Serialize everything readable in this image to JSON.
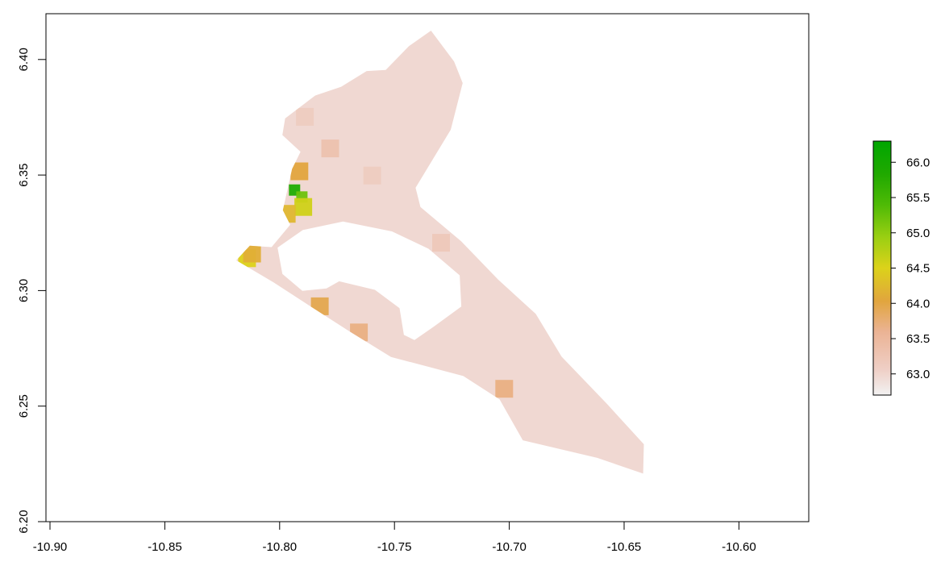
{
  "chart_data": {
    "type": "heatmap",
    "title": "",
    "xlabel": "",
    "ylabel": "",
    "xlim": [
      -10.9,
      -10.567
    ],
    "ylim": [
      6.2,
      6.42
    ],
    "x_ticks": [
      "-10.90",
      "-10.85",
      "-10.80",
      "-10.75",
      "-10.70",
      "-10.65",
      "-10.60"
    ],
    "y_ticks": [
      "6.20",
      "6.25",
      "6.30",
      "6.35",
      "6.40"
    ],
    "legend": {
      "placement": "right",
      "min": 62.7,
      "max": 66.3,
      "ticks": [
        "63.0",
        "63.5",
        "64.0",
        "64.5",
        "65.0",
        "65.5",
        "66.0"
      ],
      "colors": [
        "#f2f2f2",
        "#ecb49c",
        "#e0a040",
        "#d9d91a",
        "#8fcc10",
        "#13a800",
        "#00a600"
      ]
    },
    "grid": false,
    "land_outline": [
      [
        -10.8189,
        6.3131
      ],
      [
        -10.813,
        6.3194
      ],
      [
        -10.8035,
        6.3188
      ],
      [
        -10.7954,
        6.3285
      ],
      [
        -10.7986,
        6.3348
      ],
      [
        -10.7946,
        6.3526
      ],
      [
        -10.7909,
        6.3601
      ],
      [
        -10.7988,
        6.3673
      ],
      [
        -10.7976,
        6.3745
      ],
      [
        -10.7845,
        6.3844
      ],
      [
        -10.7732,
        6.3882
      ],
      [
        -10.7621,
        6.395
      ],
      [
        -10.7538,
        6.3955
      ],
      [
        -10.7437,
        6.4058
      ],
      [
        -10.7341,
        6.4125
      ],
      [
        -10.724,
        6.3991
      ],
      [
        -10.7203,
        6.3898
      ],
      [
        -10.7255,
        6.3696
      ],
      [
        -10.7408,
        6.3445
      ],
      [
        -10.7387,
        6.3362
      ],
      [
        -10.721,
        6.3214
      ],
      [
        -10.7048,
        6.3047
      ],
      [
        -10.6885,
        6.2899
      ],
      [
        -10.6772,
        6.2714
      ],
      [
        -10.6575,
        6.251
      ],
      [
        -10.6414,
        6.2335
      ],
      [
        -10.6417,
        6.2208
      ],
      [
        -10.6617,
        6.2276
      ],
      [
        -10.6941,
        6.2352
      ],
      [
        -10.7042,
        6.2529
      ],
      [
        -10.72,
        6.263
      ],
      [
        -10.7515,
        6.2713
      ],
      [
        -10.77,
        6.2826
      ],
      [
        -10.7891,
        6.2948
      ],
      [
        -10.8027,
        6.3036
      ],
      [
        -10.8189,
        6.3131
      ]
    ],
    "water_outline": [
      [
        -10.8009,
        6.3186
      ],
      [
        -10.7899,
        6.3262
      ],
      [
        -10.7724,
        6.3299
      ],
      [
        -10.7511,
        6.3256
      ],
      [
        -10.7352,
        6.3181
      ],
      [
        -10.7216,
        6.3066
      ],
      [
        -10.7209,
        6.2931
      ],
      [
        -10.7327,
        6.2845
      ],
      [
        -10.7413,
        6.2786
      ],
      [
        -10.7459,
        6.2808
      ],
      [
        -10.7478,
        6.2924
      ],
      [
        -10.7585,
        6.3003
      ],
      [
        -10.7741,
        6.304
      ],
      [
        -10.7796,
        6.3009
      ],
      [
        -10.7901,
        6.2999
      ],
      [
        -10.7988,
        6.3072
      ],
      [
        -10.8009,
        6.3186
      ]
    ],
    "hotspots": [
      {
        "x": -10.7935,
        "y": 6.3435,
        "value": 66.0
      },
      {
        "x": -10.7903,
        "y": 6.3405,
        "value": 65.3
      },
      {
        "x": -10.7897,
        "y": 6.3362,
        "value": 64.6
      },
      {
        "x": -10.7969,
        "y": 6.3332,
        "value": 64.2
      },
      {
        "x": -10.7914,
        "y": 6.3516,
        "value": 64.0
      },
      {
        "x": -10.8142,
        "y": 6.314,
        "value": 64.5
      },
      {
        "x": -10.812,
        "y": 6.316,
        "value": 64.1
      },
      {
        "x": -10.7825,
        "y": 6.2932,
        "value": 63.9
      },
      {
        "x": -10.7655,
        "y": 6.2819,
        "value": 63.6
      },
      {
        "x": -10.7022,
        "y": 6.2575,
        "value": 63.6
      },
      {
        "x": -10.7297,
        "y": 6.3207,
        "value": 63.3
      },
      {
        "x": -10.7597,
        "y": 6.3498,
        "value": 63.2
      },
      {
        "x": -10.778,
        "y": 6.3615,
        "value": 63.5
      },
      {
        "x": -10.789,
        "y": 6.3752,
        "value": 63.2
      }
    ]
  }
}
